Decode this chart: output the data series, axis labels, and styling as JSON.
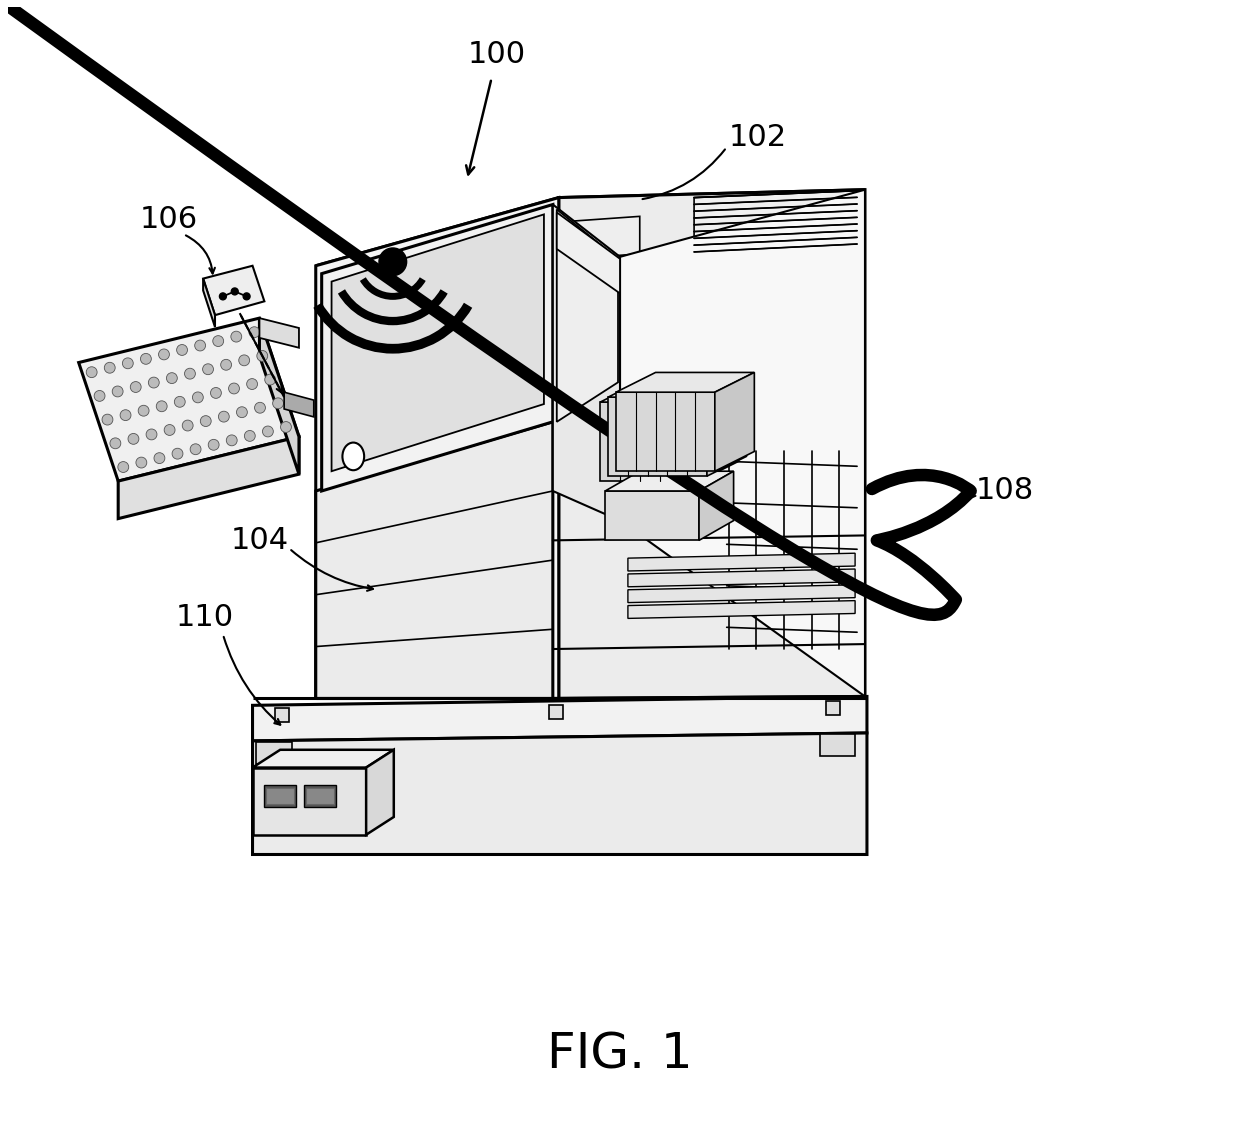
{
  "background_color": "#ffffff",
  "line_color": "#000000",
  "fig_label": "FIG. 1",
  "fig_label_fontsize": 36,
  "label_fontsize": 22,
  "lw_main": 2.2,
  "lw_thin": 1.4,
  "lw_cable": 9.0
}
